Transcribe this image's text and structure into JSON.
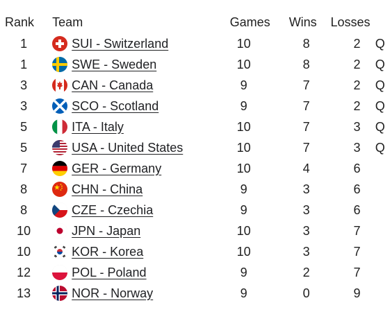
{
  "headers": {
    "rank": "Rank",
    "team": "Team",
    "games": "Games",
    "wins": "Wins",
    "losses": "Losses"
  },
  "rows": [
    {
      "rank": "1",
      "team": "SUI - Switzerland",
      "flag": "flag-switzerland-icon",
      "games": "10",
      "wins": "8",
      "losses": "2",
      "q": "Q"
    },
    {
      "rank": "1",
      "team": "SWE - Sweden",
      "flag": "flag-sweden-icon",
      "games": "10",
      "wins": "8",
      "losses": "2",
      "q": "Q"
    },
    {
      "rank": "3",
      "team": "CAN - Canada",
      "flag": "flag-canada-icon",
      "games": "9",
      "wins": "7",
      "losses": "2",
      "q": "Q"
    },
    {
      "rank": "3",
      "team": "SCO - Scotland",
      "flag": "flag-scotland-icon",
      "games": "9",
      "wins": "7",
      "losses": "2",
      "q": "Q"
    },
    {
      "rank": "5",
      "team": "ITA - Italy",
      "flag": "flag-italy-icon",
      "games": "10",
      "wins": "7",
      "losses": "3",
      "q": "Q"
    },
    {
      "rank": "5",
      "team": "USA - United States",
      "flag": "flag-usa-icon",
      "games": "10",
      "wins": "7",
      "losses": "3",
      "q": "Q"
    },
    {
      "rank": "7",
      "team": "GER - Germany",
      "flag": "flag-germany-icon",
      "games": "10",
      "wins": "4",
      "losses": "6",
      "q": ""
    },
    {
      "rank": "8",
      "team": "CHN - China",
      "flag": "flag-china-icon",
      "games": "9",
      "wins": "3",
      "losses": "6",
      "q": ""
    },
    {
      "rank": "8",
      "team": "CZE - Czechia",
      "flag": "flag-czechia-icon",
      "games": "9",
      "wins": "3",
      "losses": "6",
      "q": ""
    },
    {
      "rank": "10",
      "team": "JPN - Japan",
      "flag": "flag-japan-icon",
      "games": "10",
      "wins": "3",
      "losses": "7",
      "q": ""
    },
    {
      "rank": "10",
      "team": "KOR - Korea",
      "flag": "flag-korea-icon",
      "games": "10",
      "wins": "3",
      "losses": "7",
      "q": ""
    },
    {
      "rank": "12",
      "team": "POL - Poland",
      "flag": "flag-poland-icon",
      "games": "9",
      "wins": "2",
      "losses": "7",
      "q": ""
    },
    {
      "rank": "13",
      "team": "NOR - Norway",
      "flag": "flag-norway-icon",
      "games": "9",
      "wins": "0",
      "losses": "9",
      "q": ""
    }
  ]
}
